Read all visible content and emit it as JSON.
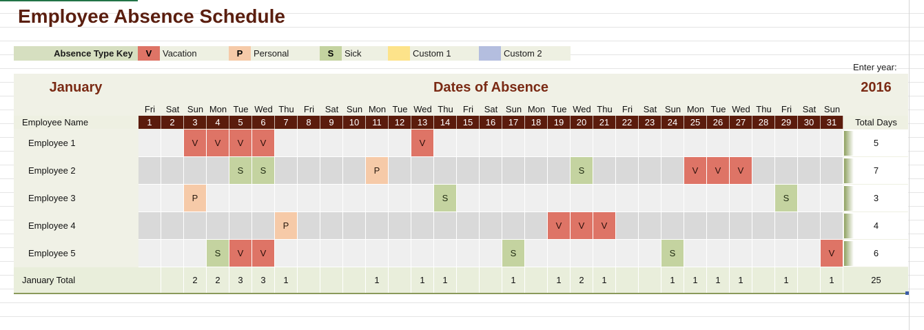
{
  "title": "Employee Absence Schedule",
  "key": {
    "label": "Absence Type Key",
    "items": [
      {
        "code": "V",
        "text": "Vacation",
        "color": "#de7466"
      },
      {
        "code": "P",
        "text": "Personal",
        "color": "#f6caa8"
      },
      {
        "code": "S",
        "text": "Sick",
        "color": "#c4d3a0"
      },
      {
        "code": "",
        "text": "Custom 1",
        "color": "#fde38a"
      },
      {
        "code": "",
        "text": "Custom 2",
        "color": "#b4bedf"
      }
    ]
  },
  "enter_year_label": "Enter year:",
  "year": "2016",
  "month": "January",
  "dates_title": "Dates of Absence",
  "employee_name_header": "Employee Name",
  "total_days_header": "Total Days",
  "days_of_week": [
    "Fri",
    "Sat",
    "Sun",
    "Mon",
    "Tue",
    "Wed",
    "Thu",
    "Fri",
    "Sat",
    "Sun",
    "Mon",
    "Tue",
    "Wed",
    "Thu",
    "Fri",
    "Sat",
    "Sun",
    "Mon",
    "Tue",
    "Wed",
    "Thu",
    "Fri",
    "Sat",
    "Sun",
    "Mon",
    "Tue",
    "Wed",
    "Thu",
    "Fri",
    "Sat",
    "Sun"
  ],
  "days": [
    "1",
    "2",
    "3",
    "4",
    "5",
    "6",
    "7",
    "8",
    "9",
    "10",
    "11",
    "12",
    "13",
    "14",
    "15",
    "16",
    "17",
    "18",
    "19",
    "20",
    "21",
    "22",
    "23",
    "24",
    "25",
    "26",
    "27",
    "28",
    "29",
    "30",
    "31"
  ],
  "employees": [
    {
      "name": "Employee 1",
      "total": "5",
      "absences": {
        "3": "V",
        "4": "V",
        "5": "V",
        "6": "V",
        "13": "V"
      }
    },
    {
      "name": "Employee 2",
      "total": "7",
      "absences": {
        "5": "S",
        "6": "S",
        "11": "P",
        "20": "S",
        "25": "V",
        "26": "V",
        "27": "V"
      }
    },
    {
      "name": "Employee 3",
      "total": "3",
      "absences": {
        "3": "P",
        "14": "S",
        "29": "S"
      }
    },
    {
      "name": "Employee 4",
      "total": "4",
      "absences": {
        "7": "P",
        "19": "V",
        "20": "V",
        "21": "V"
      }
    },
    {
      "name": "Employee 5",
      "total": "6",
      "absences": {
        "4": "S",
        "5": "V",
        "6": "V",
        "17": "S",
        "24": "S",
        "31": "V"
      }
    }
  ],
  "total_row": {
    "label": "January Total",
    "per_day": [
      "",
      "",
      "2",
      "2",
      "3",
      "3",
      "1",
      "",
      "",
      "",
      "1",
      "",
      "1",
      "1",
      "",
      "",
      "1",
      "",
      "1",
      "2",
      "1",
      "",
      "",
      "1",
      "1",
      "1",
      "1",
      "",
      "1",
      "",
      "1"
    ],
    "grand_total": "25"
  },
  "type_colors": {
    "V": "#de7466",
    "P": "#f6caa8",
    "S": "#c4d3a0"
  },
  "header_color": "#5b1c0c",
  "title_color": "#5a1e0f"
}
